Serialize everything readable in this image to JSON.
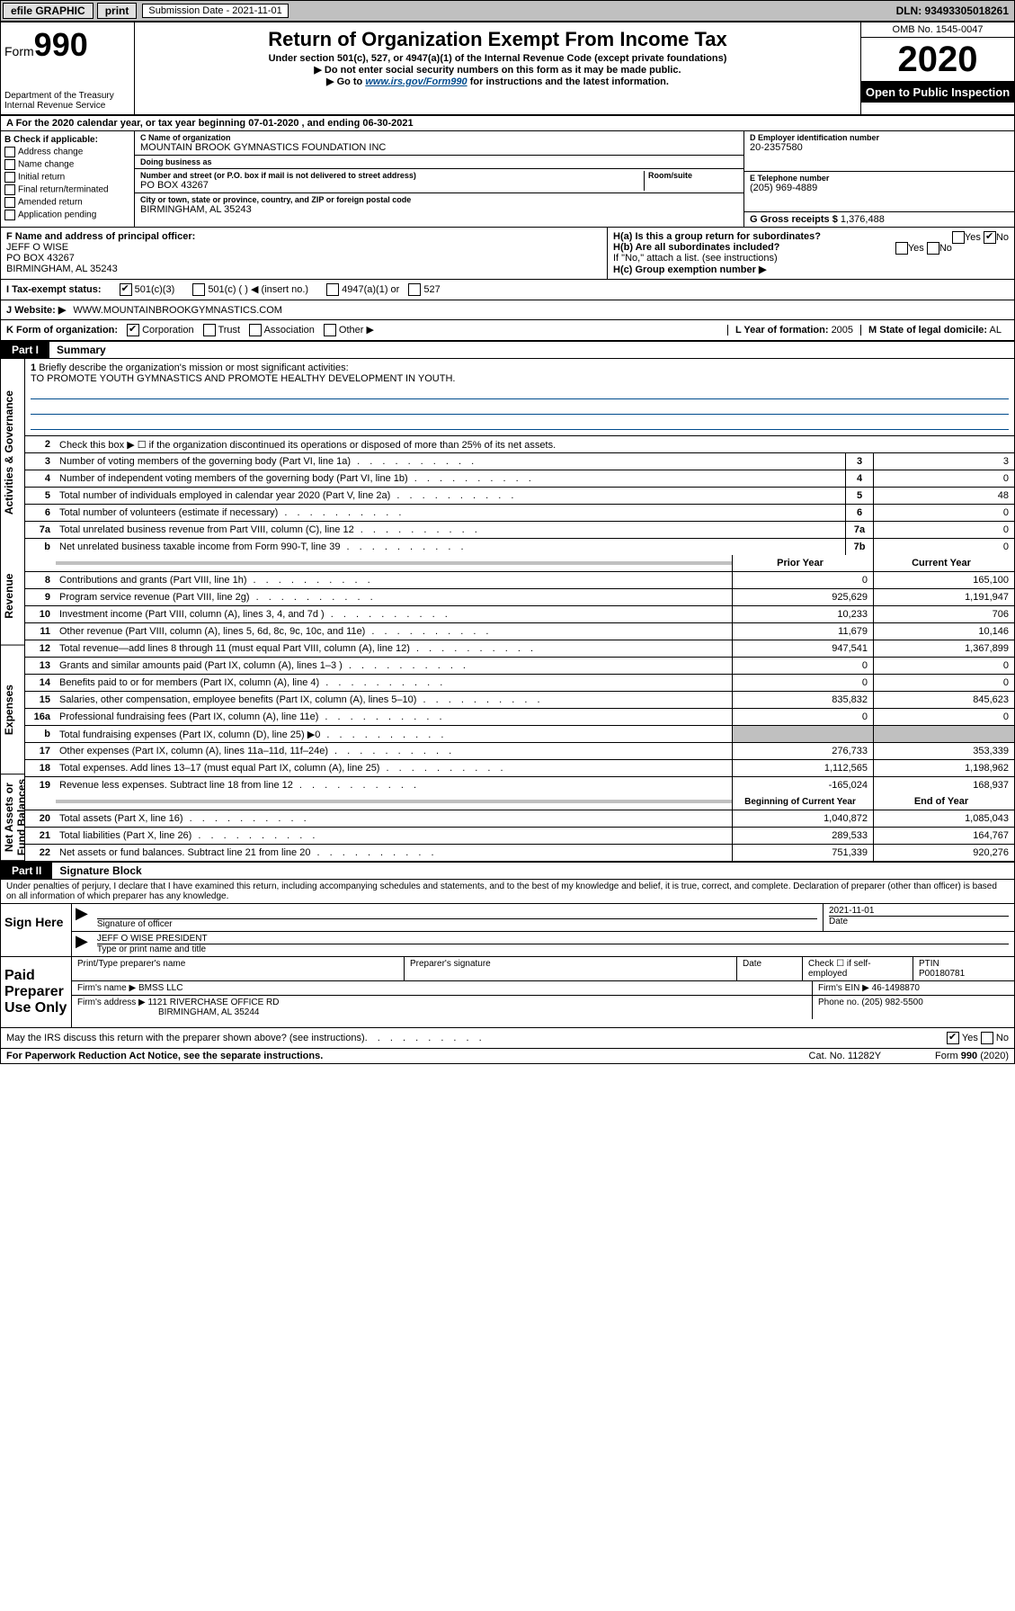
{
  "topbar": {
    "efile": "efile GRAPHIC",
    "print": "print",
    "sub_label": "Submission Date - 2021-11-01",
    "dln": "DLN: 93493305018261"
  },
  "header": {
    "form_prefix": "Form",
    "form_number": "990",
    "dept": "Department of the Treasury",
    "irs": "Internal Revenue Service",
    "title": "Return of Organization Exempt From Income Tax",
    "subtitle": "Under section 501(c), 527, or 4947(a)(1) of the Internal Revenue Code (except private foundations)",
    "note1": "▶ Do not enter social security numbers on this form as it may be made public.",
    "note2_pre": "▶ Go to ",
    "note2_link": "www.irs.gov/Form990",
    "note2_post": " for instructions and the latest information.",
    "omb": "OMB No. 1545-0047",
    "year": "2020",
    "open": "Open to Public Inspection"
  },
  "rowA": "A  For the 2020 calendar year, or tax year beginning 07-01-2020    , and ending 06-30-2021",
  "chkB": {
    "label": "B Check if applicable:",
    "items": [
      "Address change",
      "Name change",
      "Initial return",
      "Final return/terminated",
      "Amended return",
      "Application pending"
    ]
  },
  "org": {
    "name_lbl": "C Name of organization",
    "name": "MOUNTAIN BROOK GYMNASTICS FOUNDATION INC",
    "dba_lbl": "Doing business as",
    "dba": "",
    "addr_lbl": "Number and street (or P.O. box if mail is not delivered to street address)",
    "room_lbl": "Room/suite",
    "addr": "PO BOX 43267",
    "city_lbl": "City or town, state or province, country, and ZIP or foreign postal code",
    "city": "BIRMINGHAM, AL  35243",
    "ein_lbl": "D Employer identification number",
    "ein": "20-2357580",
    "tel_lbl": "E Telephone number",
    "tel": "(205) 969-4889",
    "gross_lbl": "G Gross receipts $",
    "gross": "1,376,488"
  },
  "rowF": {
    "lbl": "F  Name and address of principal officer:",
    "name": "JEFF O WISE",
    "addr1": "PO BOX 43267",
    "addr2": "BIRMINGHAM, AL  35243"
  },
  "rowH": {
    "ha": "H(a)  Is this a group return for subordinates?",
    "hb": "H(b)  Are all subordinates included?",
    "hb_note": "If \"No,\" attach a list. (see instructions)",
    "hc": "H(c)  Group exemption number ▶"
  },
  "rowI": {
    "lbl": "I    Tax-exempt status:",
    "opt1": "501(c)(3)",
    "opt2": "501(c) (  ) ◀ (insert no.)",
    "opt3": "4947(a)(1) or",
    "opt4": "527"
  },
  "rowJ": {
    "lbl": "J    Website: ▶",
    "val": "WWW.MOUNTAINBROOKGYMNASTICS.COM"
  },
  "rowK": {
    "lbl": "K Form of organization:",
    "opts": [
      "Corporation",
      "Trust",
      "Association",
      "Other ▶"
    ],
    "l_lbl": "L Year of formation:",
    "l_val": "2005",
    "m_lbl": "M State of legal domicile:",
    "m_val": "AL"
  },
  "part1": {
    "label": "Part I",
    "title": "Summary"
  },
  "mission": {
    "num": "1",
    "text": "Briefly describe the organization's mission or most significant activities:",
    "val": "TO PROMOTE YOUTH GYMNASTICS AND PROMOTE HEALTHY DEVELOPMENT IN YOUTH."
  },
  "line2": "Check this box ▶ ☐  if the organization discontinued its operations or disposed of more than 25% of its net assets.",
  "vtabs": [
    "Activities & Governance",
    "Revenue",
    "Expenses",
    "Net Assets or Fund Balances"
  ],
  "lines_single": [
    {
      "n": "3",
      "t": "Number of voting members of the governing body (Part VI, line 1a)",
      "box": "3",
      "v": "3"
    },
    {
      "n": "4",
      "t": "Number of independent voting members of the governing body (Part VI, line 1b)",
      "box": "4",
      "v": "0"
    },
    {
      "n": "5",
      "t": "Total number of individuals employed in calendar year 2020 (Part V, line 2a)",
      "box": "5",
      "v": "48"
    },
    {
      "n": "6",
      "t": "Total number of volunteers (estimate if necessary)",
      "box": "6",
      "v": "0"
    },
    {
      "n": "7a",
      "t": "Total unrelated business revenue from Part VIII, column (C), line 12",
      "box": "7a",
      "v": "0"
    },
    {
      "n": "b",
      "t": "Net unrelated business taxable income from Form 990-T, line 39",
      "box": "7b",
      "v": "0"
    }
  ],
  "col_hdr": {
    "prior": "Prior Year",
    "current": "Current Year"
  },
  "lines_double": [
    {
      "n": "8",
      "t": "Contributions and grants (Part VIII, line 1h)",
      "p": "0",
      "c": "165,100"
    },
    {
      "n": "9",
      "t": "Program service revenue (Part VIII, line 2g)",
      "p": "925,629",
      "c": "1,191,947"
    },
    {
      "n": "10",
      "t": "Investment income (Part VIII, column (A), lines 3, 4, and 7d )",
      "p": "10,233",
      "c": "706"
    },
    {
      "n": "11",
      "t": "Other revenue (Part VIII, column (A), lines 5, 6d, 8c, 9c, 10c, and 11e)",
      "p": "11,679",
      "c": "10,146"
    },
    {
      "n": "12",
      "t": "Total revenue—add lines 8 through 11 (must equal Part VIII, column (A), line 12)",
      "p": "947,541",
      "c": "1,367,899"
    },
    {
      "n": "13",
      "t": "Grants and similar amounts paid (Part IX, column (A), lines 1–3 )",
      "p": "0",
      "c": "0"
    },
    {
      "n": "14",
      "t": "Benefits paid to or for members (Part IX, column (A), line 4)",
      "p": "0",
      "c": "0"
    },
    {
      "n": "15",
      "t": "Salaries, other compensation, employee benefits (Part IX, column (A), lines 5–10)",
      "p": "835,832",
      "c": "845,623"
    },
    {
      "n": "16a",
      "t": "Professional fundraising fees (Part IX, column (A), line 11e)",
      "p": "0",
      "c": "0"
    },
    {
      "n": "b",
      "t": "Total fundraising expenses (Part IX, column (D), line 25) ▶0",
      "p": "",
      "c": "",
      "shaded": true
    },
    {
      "n": "17",
      "t": "Other expenses (Part IX, column (A), lines 11a–11d, 11f–24e)",
      "p": "276,733",
      "c": "353,339"
    },
    {
      "n": "18",
      "t": "Total expenses. Add lines 13–17 (must equal Part IX, column (A), line 25)",
      "p": "1,112,565",
      "c": "1,198,962"
    },
    {
      "n": "19",
      "t": "Revenue less expenses. Subtract line 18 from line 12",
      "p": "-165,024",
      "c": "168,937"
    }
  ],
  "col_hdr2": {
    "prior": "Beginning of Current Year",
    "current": "End of Year"
  },
  "lines_net": [
    {
      "n": "20",
      "t": "Total assets (Part X, line 16)",
      "p": "1,040,872",
      "c": "1,085,043"
    },
    {
      "n": "21",
      "t": "Total liabilities (Part X, line 26)",
      "p": "289,533",
      "c": "164,767"
    },
    {
      "n": "22",
      "t": "Net assets or fund balances. Subtract line 21 from line 20",
      "p": "751,339",
      "c": "920,276"
    }
  ],
  "part2": {
    "label": "Part II",
    "title": "Signature Block"
  },
  "perjury": "Under penalties of perjury, I declare that I have examined this return, including accompanying schedules and statements, and to the best of my knowledge and belief, it is true, correct, and complete. Declaration of preparer (other than officer) is based on all information of which preparer has any knowledge.",
  "sign": {
    "here": "Sign Here",
    "sig_lbl": "Signature of officer",
    "date": "2021-11-01",
    "date_lbl": "Date",
    "name": "JEFF O WISE PRESIDENT",
    "name_lbl": "Type or print name and title"
  },
  "paid": {
    "title": "Paid Preparer Use Only",
    "print_lbl": "Print/Type preparer's name",
    "sig_lbl": "Preparer's signature",
    "date_lbl": "Date",
    "chk_lbl": "Check ☐ if self-employed",
    "ptin_lbl": "PTIN",
    "ptin": "P00180781",
    "firm_lbl": "Firm's name    ▶",
    "firm": "BMSS LLC",
    "ein_lbl": "Firm's EIN ▶",
    "ein": "46-1498870",
    "addr_lbl": "Firm's address ▶",
    "addr1": "1121 RIVERCHASE OFFICE RD",
    "addr2": "BIRMINGHAM, AL  35244",
    "phone_lbl": "Phone no.",
    "phone": "(205) 982-5500"
  },
  "discuss": "May the IRS discuss this return with the preparer shown above? (see instructions)",
  "footer": {
    "pra": "For Paperwork Reduction Act Notice, see the separate instructions.",
    "cat": "Cat. No. 11282Y",
    "form": "Form 990 (2020)"
  }
}
